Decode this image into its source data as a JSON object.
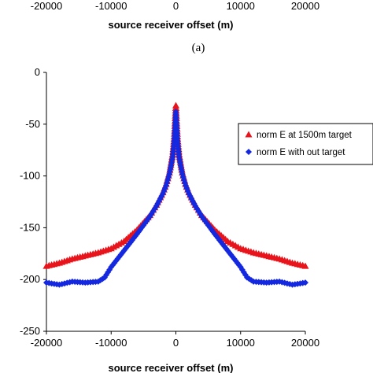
{
  "panel_label": "(a)",
  "top_chart": {
    "xlabel": "source receiver offset (m)",
    "x_ticks": [
      "-20000",
      "-10000",
      "0",
      "10000",
      "20000"
    ]
  },
  "chart_data": {
    "type": "scatter",
    "title": "",
    "xlabel": "source receiver offset (m)",
    "ylabel": "",
    "xlim": [
      -20000,
      20000
    ],
    "ylim": [
      -250,
      0
    ],
    "x_ticks": [
      -20000,
      -10000,
      0,
      10000,
      20000
    ],
    "y_ticks": [
      0,
      -50,
      -100,
      -150,
      -200,
      -250
    ],
    "grid": false,
    "legend_position": "right",
    "series": [
      {
        "name": "norm E at 1500m target",
        "marker": "triangle",
        "color": "#e8141c",
        "x": [
          -20000,
          -18000,
          -16000,
          -14000,
          -12000,
          -10000,
          -8000,
          -6000,
          -4000,
          -3000,
          -2000,
          -1500,
          -1000,
          -500,
          -250,
          0,
          250,
          500,
          1000,
          1500,
          2000,
          3000,
          4000,
          6000,
          8000,
          10000,
          12000,
          14000,
          16000,
          18000,
          20000
        ],
        "y": [
          -187,
          -184,
          -180,
          -177,
          -174,
          -170,
          -163,
          -152,
          -138,
          -128,
          -116,
          -108,
          -97,
          -79,
          -62,
          -32,
          -62,
          -79,
          -97,
          -108,
          -116,
          -128,
          -138,
          -152,
          -163,
          -170,
          -174,
          -177,
          -180,
          -184,
          -187
        ]
      },
      {
        "name": "norm E with out target",
        "marker": "diamond",
        "color": "#1428e0",
        "x": [
          -20000,
          -18000,
          -16000,
          -14000,
          -12000,
          -11000,
          -10000,
          -8000,
          -6000,
          -4000,
          -3000,
          -2000,
          -1500,
          -1000,
          -500,
          -250,
          0,
          250,
          500,
          1000,
          1500,
          2000,
          3000,
          4000,
          6000,
          8000,
          10000,
          11000,
          12000,
          14000,
          16000,
          18000,
          20000
        ],
        "y": [
          -203,
          -205,
          -202,
          -203,
          -202,
          -198,
          -188,
          -172,
          -156,
          -139,
          -129,
          -117,
          -109,
          -98,
          -82,
          -66,
          -38,
          -66,
          -82,
          -98,
          -109,
          -117,
          -129,
          -139,
          -156,
          -172,
          -188,
          -198,
          -202,
          -203,
          -202,
          -205,
          -203
        ]
      }
    ]
  }
}
